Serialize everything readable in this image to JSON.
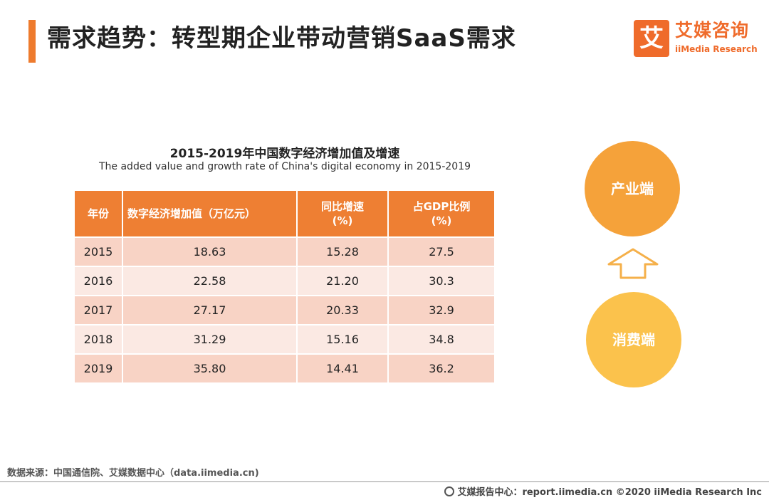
{
  "header": {
    "title": "需求趋势：转型期企业带动营销SaaS需求",
    "accent_color": "#ee7b2e"
  },
  "logo": {
    "mark": "艾",
    "cn": "艾媒咨询",
    "en": "iiMedia Research"
  },
  "table": {
    "title": "2015-2019年中国数字经济增加值及增速",
    "subtitle": "The added value and growth rate of China's digital economy in 2015-2019",
    "columns": [
      {
        "line1": "年份",
        "line2": ""
      },
      {
        "line1": "数字经济增加值（万亿元）",
        "line2": ""
      },
      {
        "line1": "同比增速",
        "line2": "(%)"
      },
      {
        "line1": "占GDP比例",
        "line2": "(%)"
      }
    ],
    "rows": [
      [
        "2015",
        "18.63",
        "15.28",
        "27.5"
      ],
      [
        "2016",
        "22.58",
        "21.20",
        "30.3"
      ],
      [
        "2017",
        "27.17",
        "20.33",
        "32.9"
      ],
      [
        "2018",
        "31.29",
        "15.16",
        "34.8"
      ],
      [
        "2019",
        "35.80",
        "14.41",
        "36.2"
      ]
    ]
  },
  "diagram": {
    "top_label": "产业端",
    "bottom_label": "消费端",
    "arrow_icon": "up-arrow-icon"
  },
  "footer": {
    "source": "数据来源：中国通信院、艾媒数据中心（data.iimedia.cn)",
    "credit": "艾媒报告中心：report.iimedia.cn  ©2020  iiMedia Research  Inc"
  }
}
